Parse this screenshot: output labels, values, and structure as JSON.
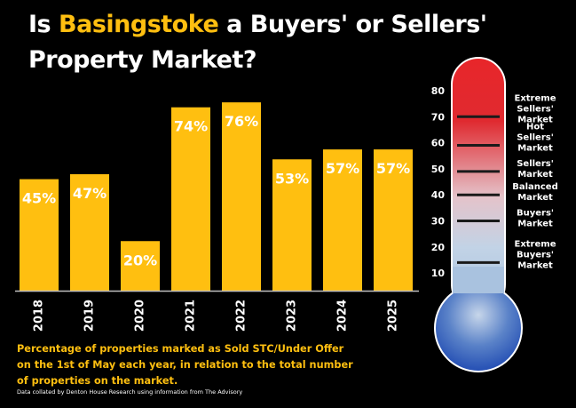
{
  "title": {
    "prefix": "Is ",
    "highlight": "Basingstoke",
    "suffix_line1": " a Buyers' or Sellers'",
    "line2": "Property Market?"
  },
  "colors": {
    "background": "#000000",
    "bar": "#ffbf10",
    "highlight": "#ffbf10",
    "thermo_top": "#e8262a",
    "thermo_mid": "#e8c6cc",
    "thermo_low": "#b8cfe6",
    "thermo_bulb": "#1d4fb8"
  },
  "chart_data": [
    {
      "type": "bar",
      "categories": [
        "2018",
        "2019",
        "2020",
        "2021",
        "2022",
        "2023",
        "2024",
        "2025"
      ],
      "values": [
        45,
        47,
        20,
        74,
        76,
        53,
        57,
        57
      ],
      "data_labels": [
        "45%",
        "47%",
        "20%",
        "74%",
        "76%",
        "53%",
        "57%",
        "57%"
      ],
      "ylim": [
        0,
        80
      ],
      "grid": false,
      "legend": "none"
    },
    {
      "type": "thermometer",
      "ticks": [
        "80",
        "70",
        "60",
        "50",
        "40",
        "30",
        "20",
        "10"
      ],
      "tick_values": [
        80,
        70,
        60,
        50,
        40,
        30,
        20,
        10
      ],
      "zones": [
        {
          "label": [
            "Extreme",
            "Sellers'",
            "Market"
          ],
          "value": 70
        },
        {
          "label": [
            "Hot",
            "Sellers'",
            "Market"
          ],
          "value": 59
        },
        {
          "label": [
            "Sellers'",
            "Market"
          ],
          "value": 49
        },
        {
          "label": [
            "Balanced",
            "Market"
          ],
          "value": 40
        },
        {
          "label": [
            "Buyers'",
            "Market"
          ],
          "value": 30
        },
        {
          "label": [
            "Extreme",
            "Buyers'",
            "Market"
          ],
          "value": 14
        }
      ]
    }
  ],
  "footnote": "Percentage of properties marked as Sold STC/Under Offer on the 1st of May each year, in relation to the total number of properties on the market.",
  "credit": "Data collated by Denton House Research using information from The Advisory"
}
